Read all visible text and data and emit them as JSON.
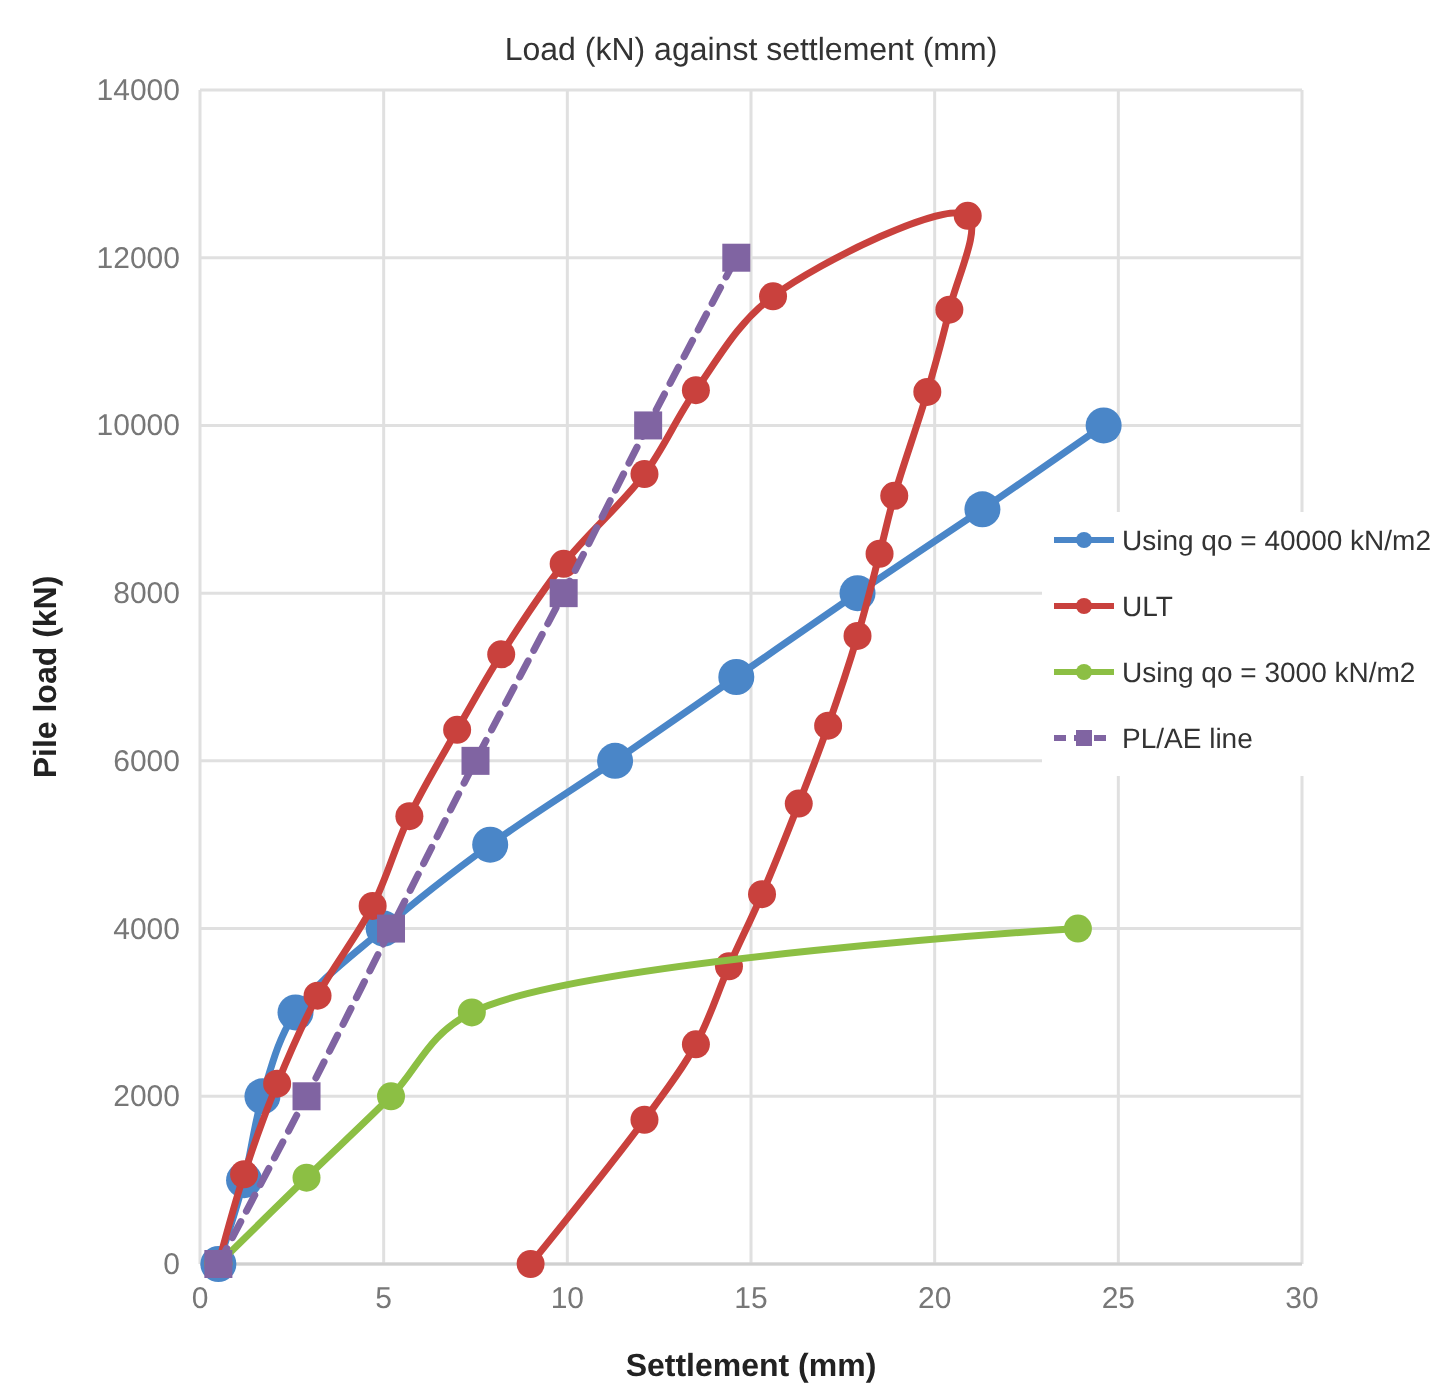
{
  "chart_data": {
    "type": "line",
    "title": "Load (kN) against settlement (mm)",
    "xlabel": "Settlement (mm)",
    "ylabel": "Pile load  (kN)",
    "xlim": [
      0,
      30
    ],
    "xticks": [
      0,
      5,
      10,
      15,
      20,
      25,
      30
    ],
    "ylim": [
      0,
      14000
    ],
    "yticks": [
      0,
      2000,
      4000,
      6000,
      8000,
      10000,
      12000,
      14000
    ],
    "grid": true,
    "legend": "right",
    "marker": "circle",
    "line_style": "solid",
    "series": [
      {
        "name": "Using qo = 40000 kN/m2",
        "color": "#4a86c8",
        "x": [
          0.5,
          1.2,
          1.7,
          2.6,
          5.0,
          7.9,
          11.3,
          14.6,
          17.9,
          21.3,
          24.6
        ],
        "values": [
          0,
          1000,
          2000,
          3000,
          4000,
          5000,
          6000,
          7000,
          8000,
          9000,
          10000
        ]
      },
      {
        "name": "ULT",
        "color": "#c9413d",
        "x": [
          0.5,
          1.2,
          2.1,
          3.2,
          4.7,
          5.7,
          7.0,
          8.2,
          9.9,
          12.1,
          13.5,
          15.6,
          20.9,
          20.4,
          19.8,
          18.9,
          18.5,
          17.9,
          17.1,
          16.3,
          15.3,
          14.4,
          13.5,
          12.1,
          9.0
        ],
        "values": [
          0,
          1070,
          2150,
          3200,
          4270,
          5340,
          6370,
          7270,
          8350,
          9420,
          10420,
          11540,
          12500,
          11380,
          10400,
          9160,
          8470,
          7490,
          6420,
          5490,
          4410,
          3550,
          2620,
          1720,
          0
        ]
      },
      {
        "name": "Using qo = 3000 kN/m2",
        "color": "#8cbf44",
        "x": [
          0.5,
          2.9,
          5.2,
          7.4,
          23.9
        ],
        "values": [
          0,
          1030,
          2000,
          3000,
          4000
        ]
      },
      {
        "name": "PL/AE line",
        "color": "#8064a2",
        "marker": "square",
        "line_style": "dashed",
        "x": [
          0.5,
          2.9,
          5.2,
          7.5,
          9.9,
          12.2,
          14.6
        ],
        "values": [
          0,
          2000,
          4000,
          6000,
          8000,
          10000,
          12000
        ]
      }
    ]
  }
}
